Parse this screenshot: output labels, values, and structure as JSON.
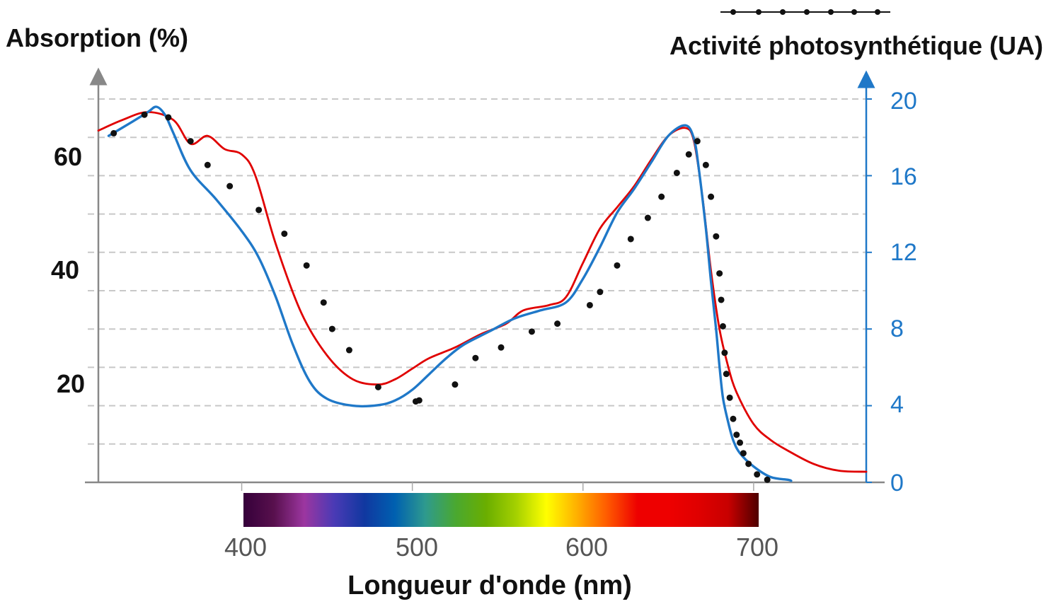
{
  "chart_data": {
    "type": "line",
    "xlabel": "Longueur d'onde (nm)",
    "ylabel_left": "Absorption (%)",
    "ylabel_right": "Activité photosynthétique (UA)",
    "x_ticks": [
      "400",
      "500",
      "600",
      "700"
    ],
    "y_left_ticks": [
      "20",
      "40",
      "60"
    ],
    "y_right_ticks": [
      "0",
      "4",
      "8",
      "12",
      "16",
      "20"
    ],
    "xlim": [
      316,
      766
    ],
    "ylim_left": [
      0,
      71.4
    ],
    "ylim_right": [
      0,
      20
    ],
    "grid": "dashed horizontal",
    "legend": "top-right",
    "colors": {
      "absorption": "#e00000",
      "blue_curve": "#1f78c8",
      "activity_dots": "#111111",
      "right_axis": "#1f78c8",
      "left_axis": "#888888"
    },
    "series": [
      {
        "axis": "left",
        "color": "#e00000",
        "x": [
          316,
          330,
          345,
          360,
          370,
          380,
          390,
          400,
          408,
          420,
          435,
          450,
          465,
          480,
          490,
          500,
          510,
          525,
          540,
          555,
          565,
          580,
          590,
          600,
          610,
          620,
          630,
          640,
          650,
          660,
          665,
          670,
          675,
          680,
          685,
          690,
          700,
          710,
          720,
          735,
          750,
          766
        ],
        "y": [
          66.5,
          68.5,
          70.0,
          68.5,
          64.0,
          65.5,
          63.0,
          62.0,
          58.0,
          45.0,
          32.0,
          24.0,
          19.5,
          18.5,
          19.5,
          21.5,
          23.5,
          25.5,
          28.0,
          30.0,
          32.5,
          33.5,
          35.0,
          41.5,
          48.0,
          52.0,
          56.0,
          61.0,
          65.5,
          67.0,
          64.5,
          54.0,
          40.0,
          29.0,
          22.0,
          17.0,
          11.0,
          8.0,
          6.0,
          3.5,
          2.2,
          2.0
        ]
      },
      {
        "axis": "left",
        "color": "#1f78c8",
        "x": [
          322,
          335,
          345,
          350,
          355,
          360,
          370,
          385,
          400,
          410,
          420,
          430,
          440,
          450,
          465,
          480,
          490,
          500,
          510,
          520,
          530,
          545,
          560,
          575,
          590,
          600,
          610,
          620,
          630,
          640,
          650,
          660,
          665,
          668,
          672,
          675,
          678,
          680,
          682,
          685,
          688,
          692,
          700,
          710,
          720,
          722
        ],
        "y": [
          65.5,
          68.0,
          70.0,
          71.0,
          69.5,
          66.0,
          59.0,
          53.5,
          47.5,
          42.5,
          35.0,
          26.0,
          19.0,
          15.8,
          14.5,
          14.6,
          15.5,
          17.5,
          20.5,
          23.5,
          26.0,
          28.5,
          31.0,
          32.5,
          34.0,
          38.5,
          44.5,
          51.0,
          55.5,
          60.5,
          65.5,
          67.5,
          65.0,
          59.0,
          48.0,
          38.0,
          29.0,
          22.0,
          16.0,
          11.5,
          8.0,
          5.5,
          3.0,
          1.0,
          0.5,
          0.3
        ]
      },
      {
        "axis": "left",
        "color": "#111111",
        "style": "dots",
        "x": [
          325,
          343,
          357,
          370,
          380,
          393,
          410,
          425,
          438,
          448,
          453,
          463,
          480,
          502,
          504,
          525,
          537,
          552,
          570,
          585,
          604,
          610,
          620,
          628,
          638,
          646,
          655,
          662,
          667,
          672,
          675,
          678,
          680,
          681,
          682,
          683,
          684,
          686,
          688,
          690,
          692,
          694,
          697,
          702,
          708
        ],
        "y": [
          66.0,
          69.5,
          69.0,
          64.5,
          60.0,
          56.0,
          51.5,
          47.0,
          41.0,
          34.0,
          29.0,
          25.0,
          18.0,
          15.3,
          15.5,
          18.5,
          23.5,
          25.5,
          28.5,
          30.0,
          33.5,
          36.0,
          41.0,
          46.0,
          50.0,
          54.0,
          58.5,
          62.0,
          64.5,
          60.0,
          54.0,
          46.5,
          39.5,
          34.5,
          29.5,
          24.5,
          20.5,
          16.0,
          12.0,
          9.0,
          7.5,
          5.5,
          3.5,
          1.5,
          0.5
        ]
      }
    ],
    "spectrum_colors": [
      "#35003a",
      "#58104d",
      "#9c36a0",
      "#4a3ab5",
      "#1038a0",
      "#0060b0",
      "#2e9a8e",
      "#4aa830",
      "#6aae00",
      "#a4d000",
      "#ffff00",
      "#ffb000",
      "#ff5a00",
      "#ee0000",
      "#ee0000",
      "#e00000",
      "#c80000",
      "#4e0000"
    ]
  }
}
